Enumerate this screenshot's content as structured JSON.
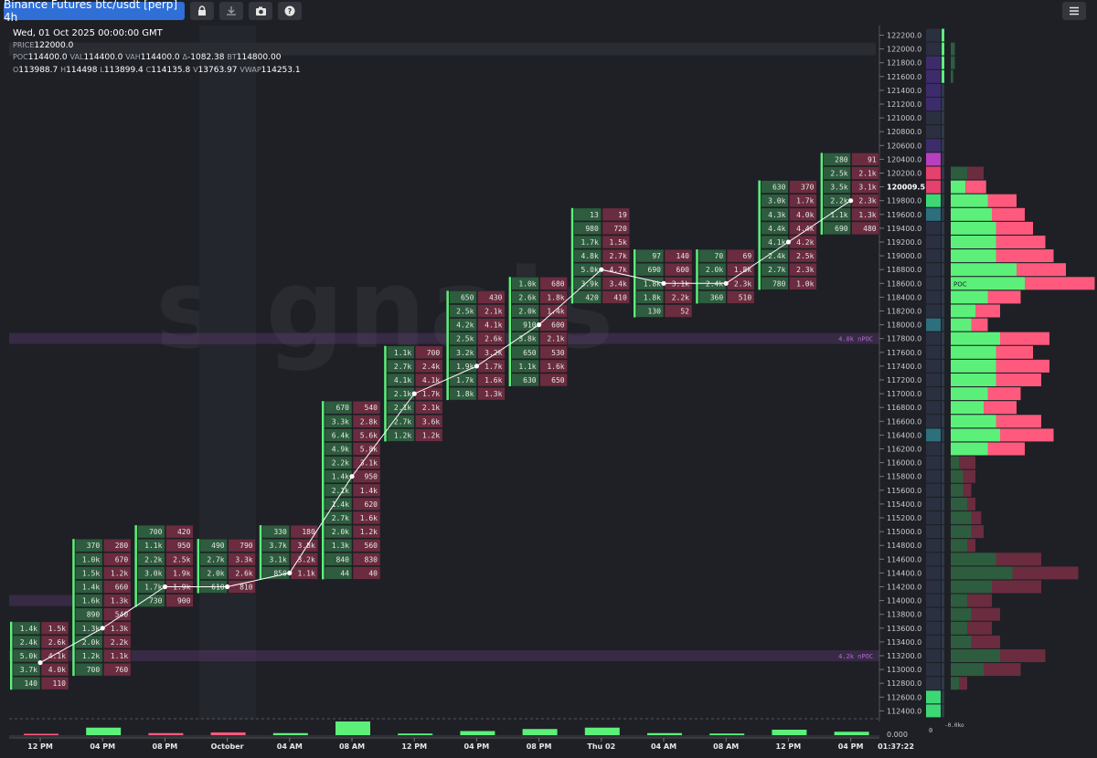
{
  "toolbar": {
    "title": "Binance Futures btc/usdt [perp] 4h",
    "icons": [
      "lock-icon",
      "download-icon",
      "camera-icon",
      "help-icon",
      "menu-icon"
    ]
  },
  "header": {
    "date": "Wed, 01 Oct 2025 00:00:00 GMT",
    "price_label": "PRICE",
    "price": "122000.0",
    "poc_label": "POC",
    "poc": "114400.0",
    "val_label": "VAL",
    "val": "114400.0",
    "vah_label": "VAH",
    "vah": "114400.0",
    "delta_label": "Δ",
    "delta": "-1082.38",
    "bt_label": "BT",
    "bt": "114800.00",
    "o_label": "O",
    "o": "113988.7",
    "h_label": "H",
    "h": "114498",
    "l_label": "L",
    "l": "113899.4",
    "c_label": "C",
    "c": "114135.8",
    "v_label": "V",
    "v": "13763.97",
    "vwap_label": "VWAP",
    "vwap": "114253.1"
  },
  "watermark": "signals",
  "clock": "01:37:22",
  "colors": {
    "bg": "#1e2026",
    "buy": "#5cf07a",
    "sell": "#ff5a7e",
    "buy_dark": "#2e5c3e",
    "sell_dark": "#6b2c3f",
    "npoc": "#b06ccf",
    "vwap": "#ffffff"
  },
  "chart_data": {
    "type": "footprint",
    "price_step": 200,
    "y_axis_labels": [
      "122200.0",
      "122000.0",
      "121800.0",
      "121600.0",
      "121400.0",
      "121200.0",
      "121000.0",
      "120800.0",
      "120600.0",
      "120400.0",
      "120200.0",
      "120009.5",
      "119800.0",
      "119600.0",
      "119400.0",
      "119200.0",
      "119000.0",
      "118800.0",
      "118600.0",
      "118400.0",
      "118200.0",
      "118000.0",
      "117800.0",
      "117600.0",
      "117400.0",
      "117200.0",
      "117000.0",
      "116800.0",
      "116600.0",
      "116400.0",
      "116200.0",
      "116000.0",
      "115800.0",
      "115600.0",
      "115400.0",
      "115200.0",
      "115000.0",
      "114800.0",
      "114600.0",
      "114400.0",
      "114200.0",
      "114000.0",
      "113800.0",
      "113600.0",
      "113400.0",
      "113200.0",
      "113000.0",
      "112800.0",
      "112600.0",
      "112400.0"
    ],
    "current_price": "120009.5",
    "x_tick_labels": [
      "12 PM",
      "04 PM",
      "08 PM",
      "October",
      "04 AM",
      "08 AM",
      "12 PM",
      "04 PM",
      "08 PM",
      "Thu 02",
      "04 AM",
      "08 AM",
      "12 PM",
      "04 PM"
    ],
    "volume_axis_label": "0.000",
    "npoc_lines": [
      {
        "label": "4.0k nPOC",
        "price": 117800
      },
      {
        "label": "4.2k nPOC",
        "price": 113200
      }
    ],
    "profile_poc_label": "POC",
    "profile_scale_labels": [
      "0",
      "-0.0ko"
    ],
    "candles": [
      {
        "top": 113600,
        "bid": [
          "1.4k",
          "2.4k",
          "5.0k",
          "3.7k",
          "140"
        ],
        "ask": [
          "1.5k",
          "2.6k",
          "4.1k",
          "4.0k",
          "110"
        ],
        "vwap": 113100
      },
      {
        "top": 114800,
        "bid": [
          "370",
          "1.0k",
          "1.5k",
          "1.4k",
          "1.6k",
          "890",
          "1.3k",
          "2.0k",
          "1.2k",
          "700"
        ],
        "ask": [
          "280",
          "670",
          "1.2k",
          "660",
          "1.3k",
          "540",
          "1.3k",
          "2.2k",
          "1.1k",
          "760"
        ],
        "vwap": 113600
      },
      {
        "top": 115000,
        "bid": [
          "700",
          "1.1k",
          "2.2k",
          "3.0k",
          "1.7k",
          "730"
        ],
        "ask": [
          "420",
          "950",
          "2.5k",
          "1.9k",
          "1.9k",
          "900"
        ],
        "vwap": 114200
      },
      {
        "top": 114800,
        "bid": [
          "490",
          "2.7k",
          "2.0k",
          "610"
        ],
        "ask": [
          "790",
          "3.3k",
          "2.6k",
          "810"
        ],
        "vwap": 114200
      },
      {
        "top": 115000,
        "bid": [
          "330",
          "3.7k",
          "3.1k",
          "850"
        ],
        "ask": [
          "180",
          "3.8k",
          "3.2k",
          "1.1k"
        ],
        "vwap": 114400
      },
      {
        "top": 116800,
        "bid": [
          "670",
          "3.3k",
          "6.4k",
          "4.9k",
          "2.2k",
          "1.4k",
          "2.1k",
          "1.4k",
          "2.7k",
          "2.0k",
          "1.3k",
          "840",
          "44"
        ],
        "ask": [
          "540",
          "2.8k",
          "5.6k",
          "5.8k",
          "3.1k",
          "950",
          "1.4k",
          "620",
          "1.6k",
          "1.2k",
          "560",
          "830",
          "40"
        ],
        "vwap": 115800
      },
      {
        "top": 117600,
        "bid": [
          "1.1k",
          "2.7k",
          "4.1k",
          "2.1k",
          "2.1k",
          "2.7k",
          "1.2k"
        ],
        "ask": [
          "700",
          "2.4k",
          "4.1k",
          "1.7k",
          "2.1k",
          "3.6k",
          "1.2k"
        ],
        "vwap": 117000
      },
      {
        "top": 118400,
        "bid": [
          "650",
          "2.5k",
          "4.2k",
          "2.5k",
          "3.2k",
          "1.9k",
          "1.7k",
          "1.8k"
        ],
        "ask": [
          "430",
          "2.1k",
          "4.1k",
          "2.6k",
          "3.2k",
          "1.7k",
          "1.6k",
          "1.3k"
        ],
        "vwap": 117400
      },
      {
        "top": 118600,
        "bid": [
          "1.0k",
          "2.6k",
          "2.0k",
          "910",
          "3.8k",
          "650",
          "1.1k",
          "630"
        ],
        "ask": [
          "680",
          "1.8k",
          "1.4k",
          "600",
          "2.1k",
          "530",
          "1.6k",
          "650"
        ],
        "vwap": 118000
      },
      {
        "top": 119600,
        "bid": [
          "13",
          "980",
          "1.7k",
          "4.8k",
          "5.0k",
          "3.9k",
          "420"
        ],
        "ask": [
          "19",
          "720",
          "1.5k",
          "2.7k",
          "4.7k",
          "3.4k",
          "410"
        ],
        "vwap": 118800
      },
      {
        "top": 119000,
        "bid": [
          "97",
          "690",
          "1.8k",
          "1.8k",
          "130"
        ],
        "ask": [
          "140",
          "600",
          "3.1k",
          "2.2k",
          "52"
        ],
        "vwap": 118600
      },
      {
        "top": 119000,
        "bid": [
          "70",
          "2.0k",
          "2.4k",
          "360"
        ],
        "ask": [
          "69",
          "1.8k",
          "2.3k",
          "510"
        ],
        "vwap": 118600
      },
      {
        "top": 120000,
        "bid": [
          "630",
          "3.0k",
          "4.3k",
          "4.4k",
          "4.1k",
          "2.4k",
          "2.7k",
          "780"
        ],
        "ask": [
          "370",
          "1.7k",
          "4.0k",
          "4.4k",
          "4.2k",
          "2.5k",
          "2.3k",
          "1.0k"
        ],
        "vwap": 119200
      },
      {
        "top": 120400,
        "bid": [
          "280",
          "2.5k",
          "3.5k",
          "2.2k",
          "1.1k",
          "690"
        ],
        "ask": [
          "91",
          "2.1k",
          "3.1k",
          "2.3k",
          "1.3k",
          "480"
        ],
        "vwap": 119800
      }
    ],
    "volume_bars": [
      0.1,
      0.55,
      0.15,
      0.2,
      0.15,
      1.0,
      0.12,
      0.3,
      0.45,
      0.55,
      0.15,
      0.12,
      0.4,
      0.25
    ],
    "profile": [
      [
        0,
        0
      ],
      [
        0.05,
        0
      ],
      [
        0.05,
        0
      ],
      [
        0.03,
        0
      ],
      [
        0,
        0
      ],
      [
        0,
        0
      ],
      [
        0,
        0
      ],
      [
        0,
        0
      ],
      [
        0,
        0
      ],
      [
        0,
        0
      ],
      [
        0.2,
        0.2
      ],
      [
        0.18,
        0.25
      ],
      [
        0.45,
        0.35
      ],
      [
        0.5,
        0.4
      ],
      [
        0.55,
        0.45
      ],
      [
        0.55,
        0.6
      ],
      [
        0.55,
        0.7
      ],
      [
        0.8,
        0.6
      ],
      [
        0.9,
        0.85
      ],
      [
        0.45,
        0.4
      ],
      [
        0.3,
        0.3
      ],
      [
        0.25,
        0.2
      ],
      [
        0.6,
        0.6
      ],
      [
        0.55,
        0.45
      ],
      [
        0.55,
        0.65
      ],
      [
        0.55,
        0.55
      ],
      [
        0.45,
        0.4
      ],
      [
        0.4,
        0.4
      ],
      [
        0.55,
        0.55
      ],
      [
        0.6,
        0.65
      ],
      [
        0.45,
        0.45
      ],
      [
        0.1,
        0.2
      ],
      [
        0.15,
        0.15
      ],
      [
        0.15,
        0.1
      ],
      [
        0.2,
        0.1
      ],
      [
        0.25,
        0.12
      ],
      [
        0.25,
        0.15
      ],
      [
        0.2,
        0.1
      ],
      [
        0.55,
        0.55
      ],
      [
        0.75,
        0.8
      ],
      [
        0.5,
        0.6
      ],
      [
        0.2,
        0.3
      ],
      [
        0.25,
        0.35
      ],
      [
        0.2,
        0.3
      ],
      [
        0.25,
        0.35
      ],
      [
        0.6,
        0.55
      ],
      [
        0.4,
        0.45
      ],
      [
        0.1,
        0.1
      ],
      [
        0,
        0
      ],
      [
        0,
        0
      ]
    ],
    "price_column_colors": [
      "dark",
      "dark",
      "purple",
      "purple",
      "purple",
      "purple",
      "dark",
      "dark",
      "purple",
      "magenta",
      "pink",
      "pink",
      "green",
      "teal",
      "dark",
      "dark",
      "dark",
      "dark",
      "dark",
      "dark",
      "dark",
      "teal",
      "dark",
      "dark",
      "dark",
      "dark",
      "dark",
      "dark",
      "dark",
      "teal",
      "dark",
      "dark",
      "dark",
      "dark",
      "dark",
      "dark",
      "dark",
      "dark",
      "dark",
      "dark",
      "dark",
      "dark",
      "dark",
      "dark",
      "dark",
      "dark",
      "dark",
      "dark",
      "green",
      "green"
    ]
  }
}
